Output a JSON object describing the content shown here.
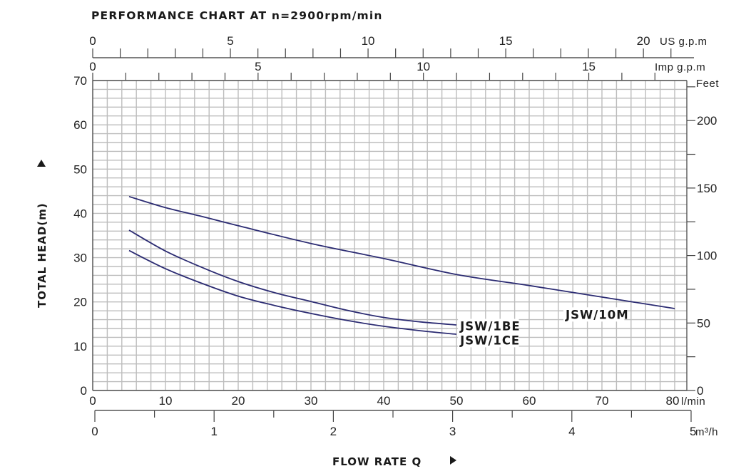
{
  "chart_data": {
    "type": "line",
    "title": "PERFORMANCE CHART AT n=2900rpm/min",
    "xlabel": "FLOW RATE Q",
    "ylabel": "TOTAL HEAD(m)",
    "x_unit": "l/min",
    "xlim": [
      0,
      81.7
    ],
    "ylim": [
      0,
      70
    ],
    "grid": true,
    "grid_step_x": 2,
    "grid_step_y": 2,
    "x_ticks": [
      0,
      10,
      20,
      30,
      40,
      50,
      60,
      70,
      80
    ],
    "y_ticks": [
      0,
      10,
      20,
      30,
      40,
      50,
      60,
      70
    ],
    "secondary_axes": {
      "us_gpm": {
        "label": "US g.p.m",
        "ticks": [
          0,
          5,
          10,
          15,
          20
        ],
        "minor_step": 1,
        "max_tick": 21
      },
      "imp_gpm": {
        "label": "Imp g.p.m",
        "ticks": [
          0,
          5,
          10,
          15
        ],
        "minor_step": 1,
        "max_tick": 17
      },
      "m3h": {
        "label": "m³/h",
        "ticks": [
          0,
          1,
          2,
          3,
          4,
          5
        ],
        "minor_step": 0.5
      },
      "feet": {
        "label": "Feet",
        "ticks": [
          0,
          50,
          100,
          150,
          200
        ],
        "minor_step": 25,
        "max_tick": 225
      },
      "lmin_unit": "l/min"
    },
    "series": [
      {
        "name": "JSW/10M",
        "x": [
          5,
          10,
          15,
          20,
          30,
          40,
          50,
          60,
          70,
          80
        ],
        "values": [
          43.8,
          41.3,
          39.3,
          37.2,
          33.2,
          29.8,
          26.2,
          23.7,
          21.1,
          18.5
        ],
        "label_pos": [
          65,
          16.2
        ]
      },
      {
        "name": "JSW/1BE",
        "x": [
          5,
          10,
          15,
          20,
          25,
          30,
          35,
          40,
          45,
          50
        ],
        "values": [
          36.2,
          31.5,
          27.8,
          24.6,
          22.1,
          20.1,
          18.1,
          16.5,
          15.5,
          14.8
        ],
        "label_pos": [
          50.5,
          13.6
        ]
      },
      {
        "name": "JSW/1CE",
        "x": [
          5,
          10,
          15,
          20,
          25,
          30,
          35,
          40,
          45,
          50
        ],
        "values": [
          31.6,
          27.5,
          24.2,
          21.3,
          19.2,
          17.4,
          15.8,
          14.5,
          13.5,
          12.7
        ],
        "label_pos": [
          50.5,
          10.4
        ]
      }
    ],
    "line_color": "#2b2b72"
  }
}
